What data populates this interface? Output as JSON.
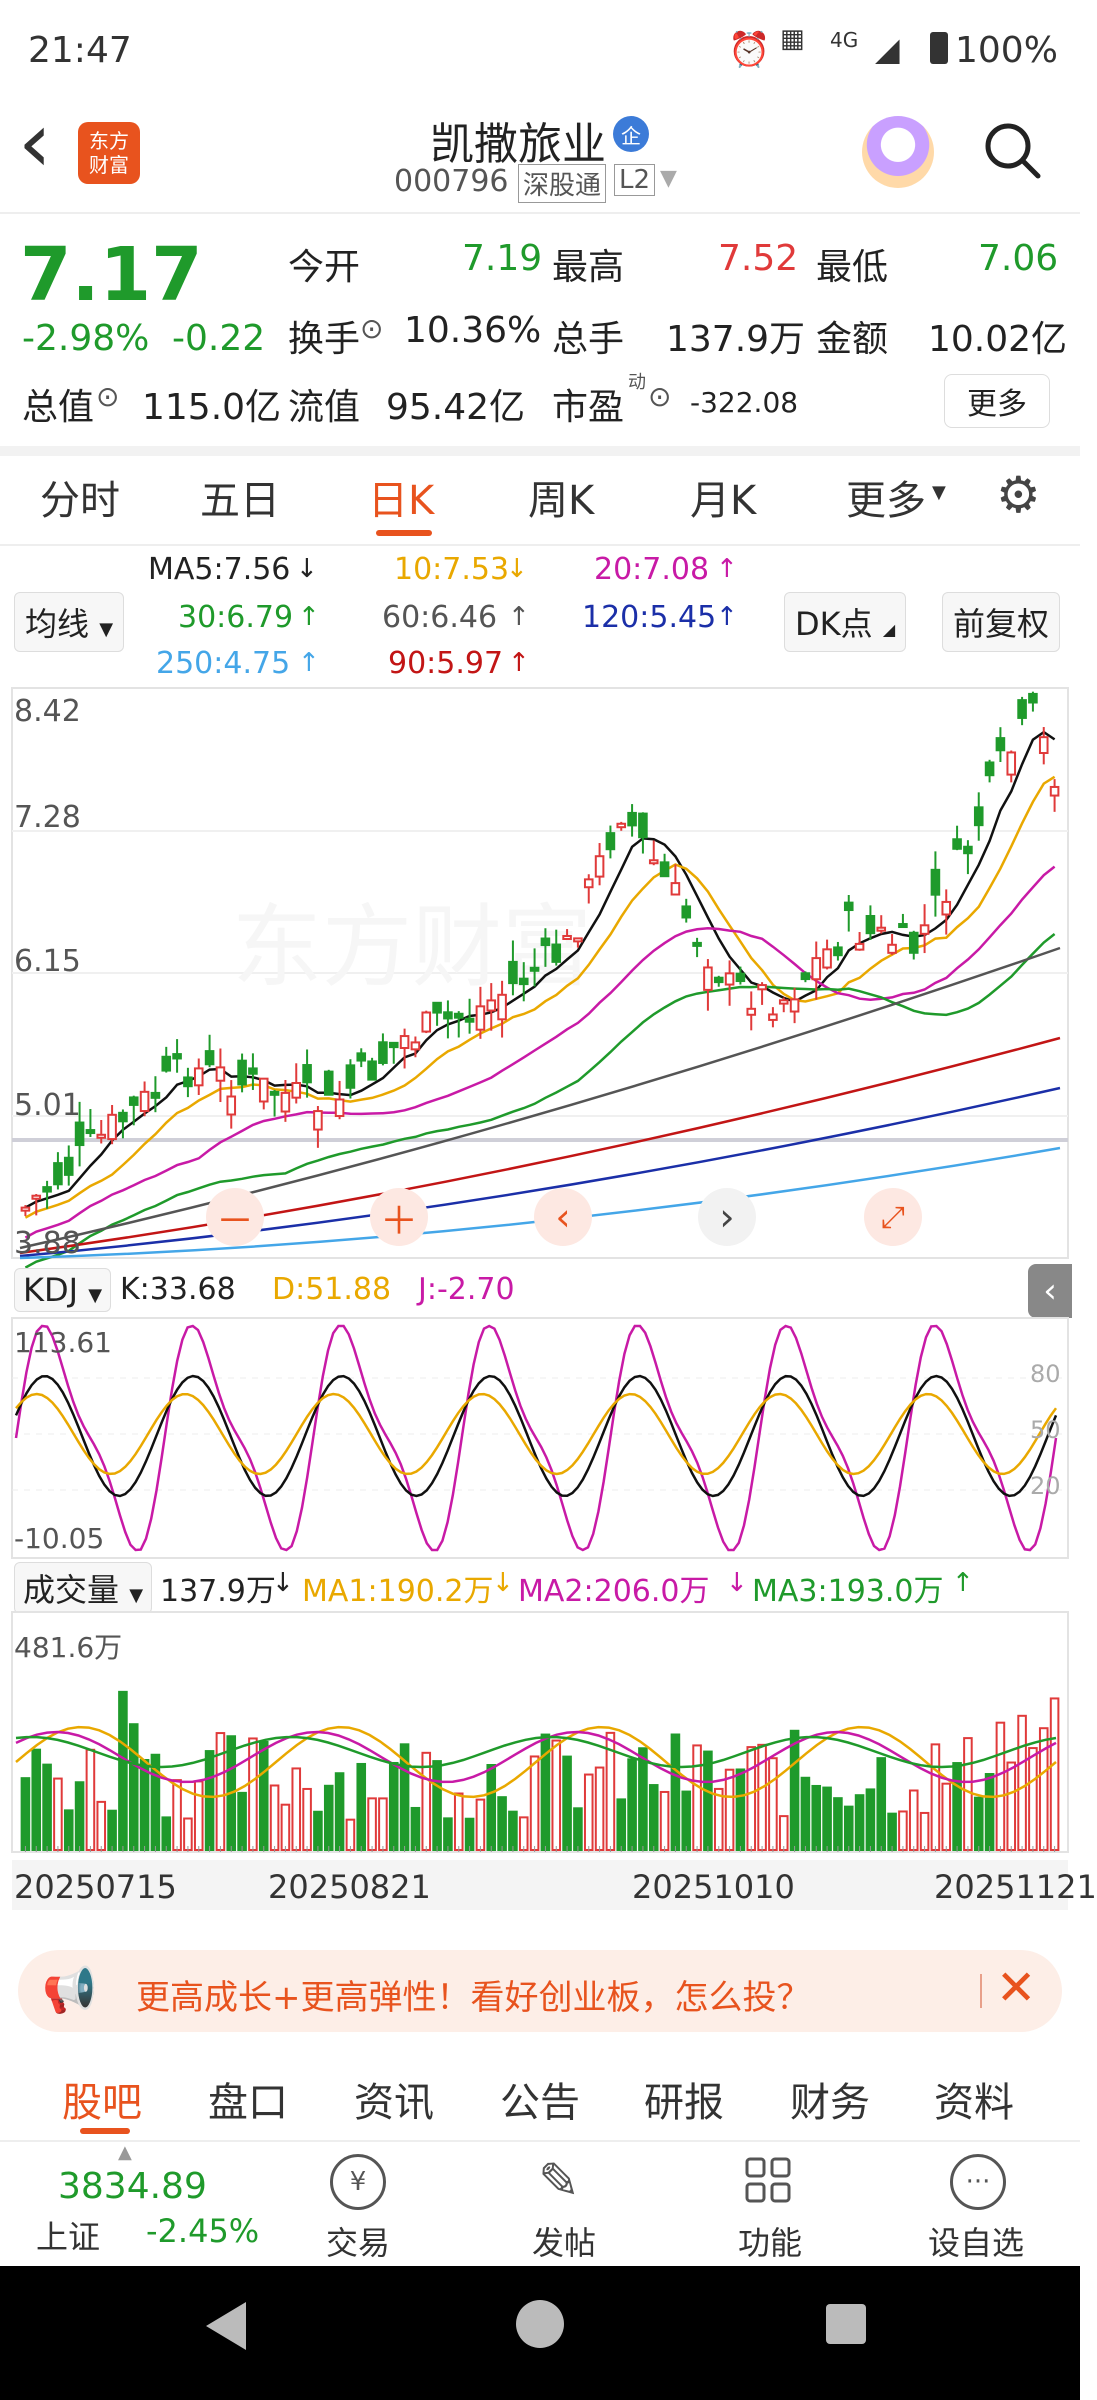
{
  "status_bar": {
    "time": "21:47",
    "battery": "100%",
    "network": "4G"
  },
  "header": {
    "back": "‹",
    "logo_text": "东方财富",
    "title": "凯撒旅业",
    "badge": "企",
    "code": "000796",
    "tag1": "深股通",
    "tag2": "L2"
  },
  "quote": {
    "price": "7.17",
    "change_pct": "-2.98%",
    "change": "-0.22",
    "open_label": "今开",
    "open": "7.19",
    "high_label": "最高",
    "high": "7.52",
    "low_label": "最低",
    "low": "7.06",
    "turnover_label": "换手",
    "turnover": "10.36%",
    "volume_label": "总手",
    "volume": "137.9万",
    "amount_label": "金额",
    "amount": "10.02亿",
    "mktcap_label": "总值",
    "mktcap": "115.0亿",
    "float_label": "流值",
    "float": "95.42亿",
    "pe_label": "市盈",
    "pe_sup": "动",
    "pe": "-322.08",
    "more_button": "更多"
  },
  "chart_tabs": [
    "分时",
    "五日",
    "日K",
    "周K",
    "月K",
    "更多"
  ],
  "active_tab": "日K",
  "ma_legend": {
    "selector": "均线",
    "ma5": "MA5:7.56",
    "ma10": "10:7.53",
    "ma20": "20:7.08",
    "ma30": "30:6.79",
    "ma60": "60:6.46",
    "ma120": "120:5.45",
    "ma250": "250:4.75",
    "ma90": "90:5.97",
    "dk_button": "DK点",
    "fq_button": "前复权"
  },
  "kline_axis": [
    "8.42",
    "7.28",
    "6.15",
    "5.01",
    "3.88"
  ],
  "kdj": {
    "selector": "KDJ",
    "k": "K:33.68",
    "d": "D:51.88",
    "j": "J:-2.70",
    "top": "113.61",
    "bottom": "-10.05",
    "r80": "80",
    "r50": "50",
    "r20": "20"
  },
  "volume_panel": {
    "selector": "成交量",
    "vol": "137.9万",
    "ma1": "MA1:190.2万",
    "ma2": "MA2:206.0万",
    "ma3": "MA3:193.0万",
    "top": "481.6万"
  },
  "dates": [
    "20250715",
    "20250821",
    "20251010",
    "20251121"
  ],
  "banner": {
    "text": "更高成长+更高弹性！看好创业板，怎么投？"
  },
  "sub_tabs": [
    "股吧",
    "盘口",
    "资讯",
    "公告",
    "研报",
    "财务",
    "资料"
  ],
  "active_sub_tab": "股吧",
  "index": {
    "value": "3834.89",
    "name": "上证",
    "pct": "-2.45%"
  },
  "bottom_actions": {
    "trade": "交易",
    "post": "发帖",
    "func": "功能",
    "watch": "设自选"
  },
  "chart_data": {
    "type": "candlestick",
    "price_axis_labels": [
      "8.42",
      "7.28",
      "6.15",
      "5.01",
      "3.88"
    ],
    "kdj": {
      "K": 33.68,
      "D": 51.88,
      "J": -2.7,
      "range": [
        -10.05,
        113.61
      ]
    },
    "volume_top": "481.6万"
  },
  "colors": {
    "up": "#e03a3a",
    "down": "#1f9a2b",
    "accent": "#e8531e"
  }
}
